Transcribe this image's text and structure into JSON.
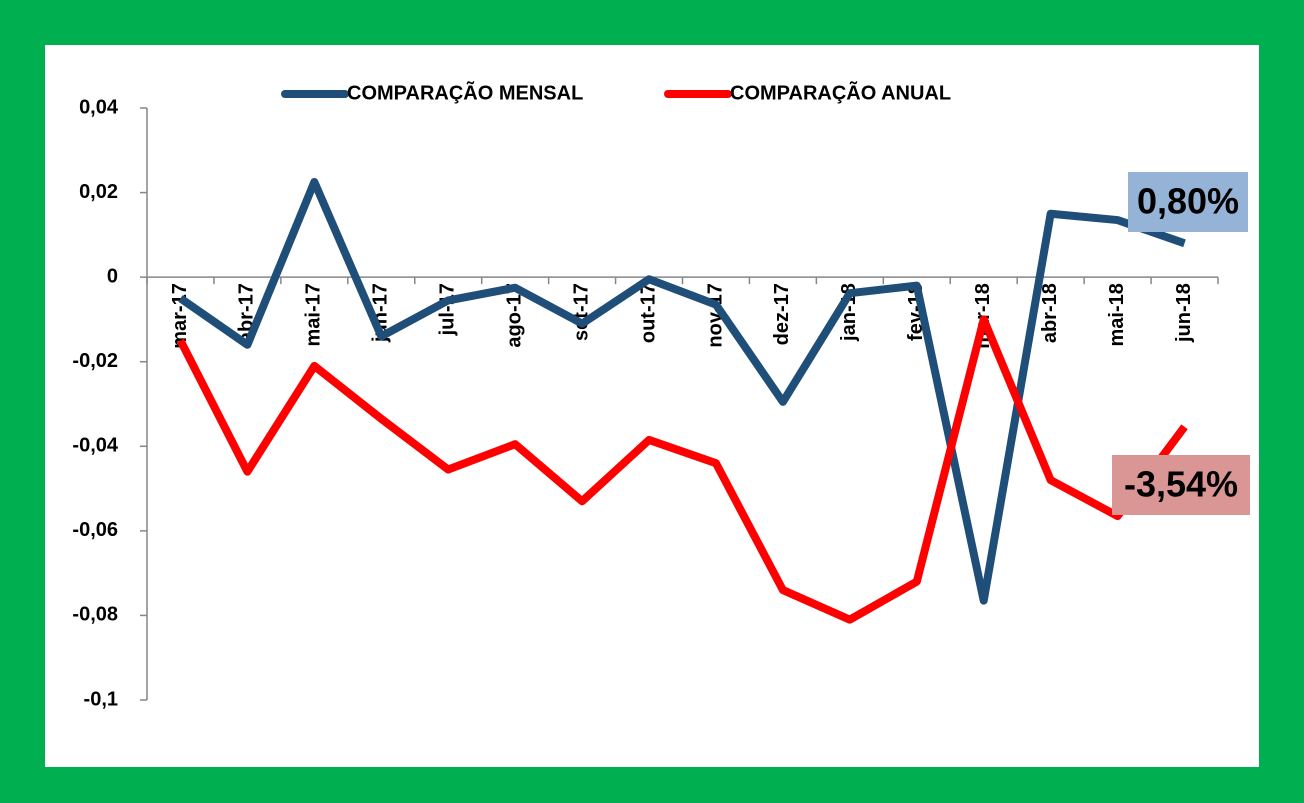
{
  "chart_data": {
    "type": "line",
    "categories": [
      "mar-17",
      "abr-17",
      "mai-17",
      "jun-17",
      "jul-17",
      "ago-17",
      "set-17",
      "out-17",
      "nov-17",
      "dez-17",
      "jan-18",
      "fev-18",
      "mar-18",
      "abr-18",
      "mai-18",
      "jun-18"
    ],
    "series": [
      {
        "name": "COMPARAÇÃO MENSAL",
        "color": "#1f4e79",
        "values": [
          -0.005,
          -0.016,
          0.0225,
          -0.014,
          -0.0055,
          -0.0025,
          -0.011,
          -0.0005,
          -0.0065,
          -0.0295,
          -0.0038,
          -0.002,
          -0.0765,
          0.015,
          0.0135,
          0.008
        ]
      },
      {
        "name": "COMPARAÇÃO ANUAL",
        "color": "#ff0000",
        "values": [
          -0.015,
          -0.046,
          -0.021,
          -0.0335,
          -0.0455,
          -0.0395,
          -0.053,
          -0.0385,
          -0.044,
          -0.074,
          -0.081,
          -0.072,
          -0.01,
          -0.048,
          -0.0565,
          -0.0354
        ]
      }
    ],
    "ylim": [
      -0.1,
      0.04
    ],
    "yticks": [
      {
        "value": -0.1,
        "label": "-0,1"
      },
      {
        "value": -0.08,
        "label": "-0,08"
      },
      {
        "value": -0.06,
        "label": "-0,06"
      },
      {
        "value": -0.04,
        "label": "-0,04"
      },
      {
        "value": -0.02,
        "label": "-0,02"
      },
      0,
      {
        "value": 0.02,
        "label": "0,02"
      },
      {
        "value": 0.04,
        "label": "0,04"
      }
    ],
    "annotations": [
      {
        "text": "0,80%",
        "color": "#95b3d7"
      },
      {
        "text": "-3,54%",
        "color": "#da9694"
      }
    ]
  }
}
